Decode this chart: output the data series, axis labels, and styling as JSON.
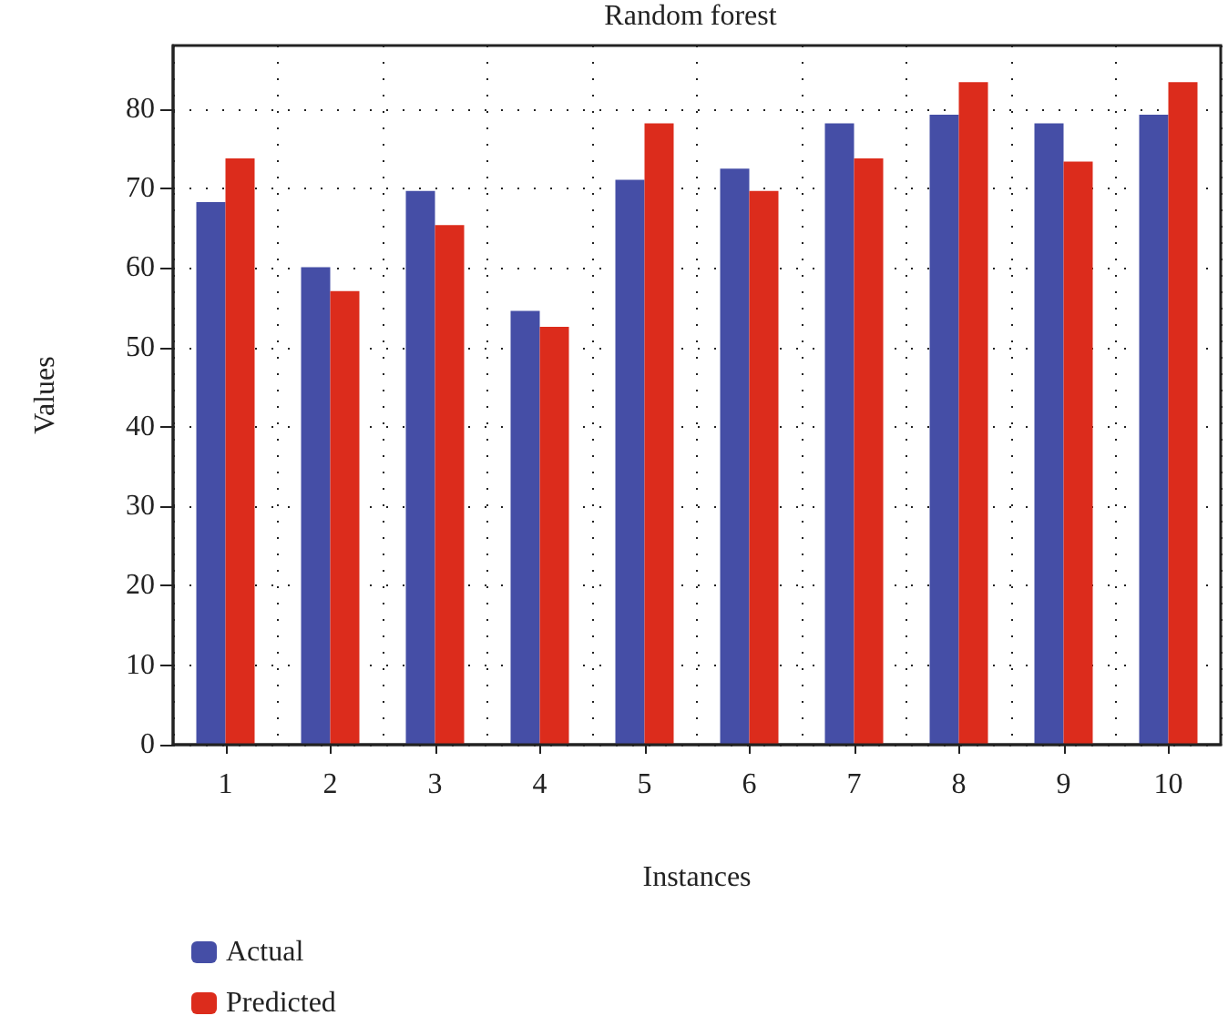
{
  "chart_data": {
    "type": "bar",
    "title": "Random forest",
    "xlabel": "Instances",
    "ylabel": "Values",
    "categories": [
      "1",
      "2",
      "3",
      "4",
      "5",
      "6",
      "7",
      "8",
      "9",
      "10"
    ],
    "series": [
      {
        "name": "Actual",
        "color": "#454ea6",
        "values": [
          68.3,
          60.1,
          69.7,
          54.6,
          71.1,
          72.5,
          78.2,
          79.3,
          78.2,
          79.3
        ]
      },
      {
        "name": "Predicted",
        "color": "#dc2c1c",
        "values": [
          73.8,
          57.1,
          65.4,
          52.6,
          78.2,
          69.7,
          73.8,
          83.4,
          73.4,
          83.4
        ]
      }
    ],
    "ylim": [
      0,
      88
    ],
    "yticks": [
      0,
      10,
      20,
      30,
      40,
      50,
      60,
      70,
      80
    ],
    "grid": true,
    "legend": "bottom left"
  }
}
